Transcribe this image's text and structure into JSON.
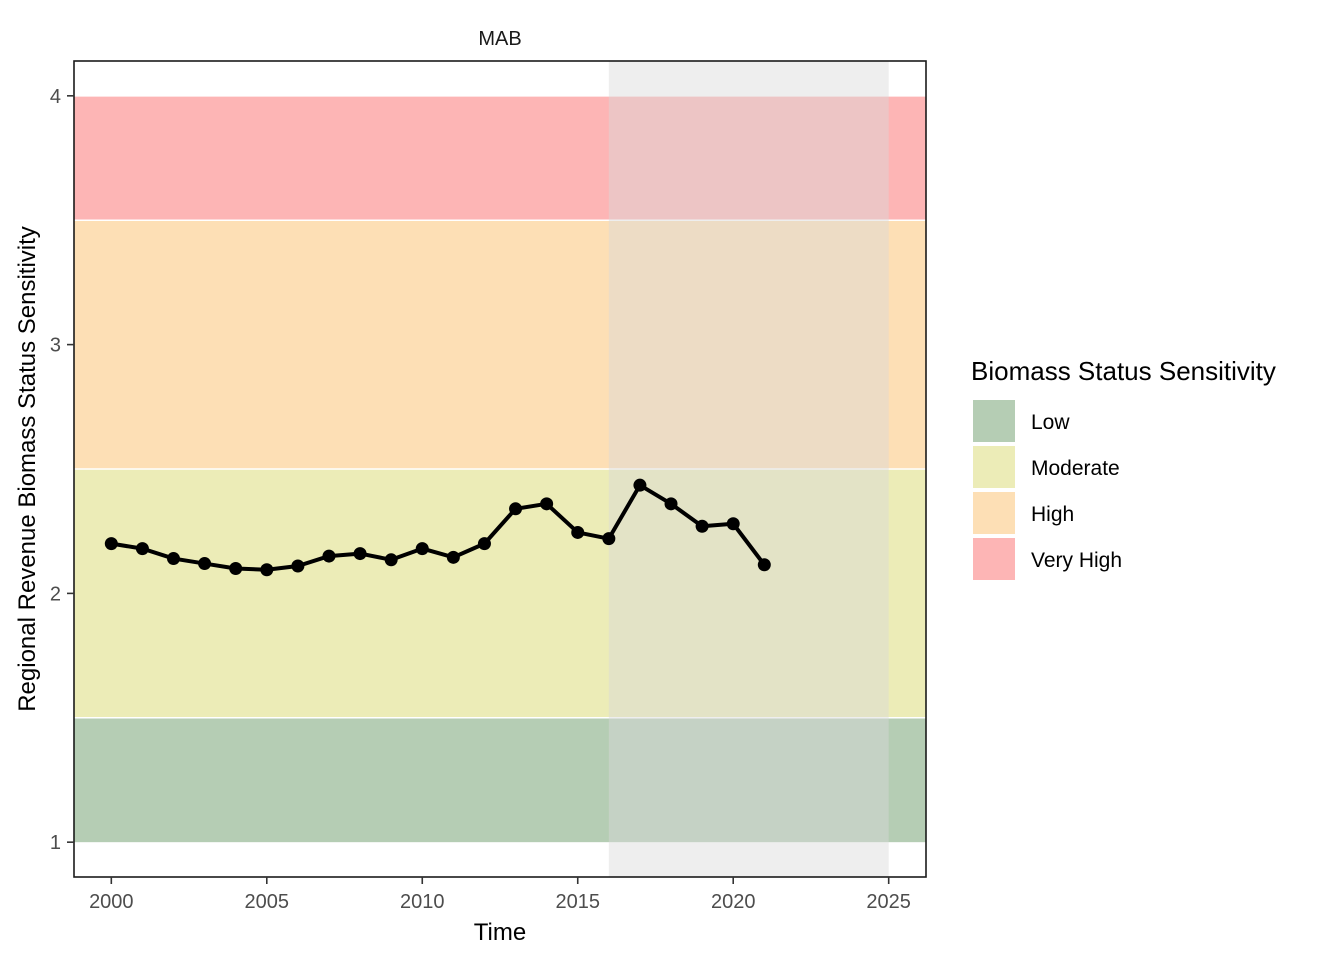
{
  "chart_data": {
    "type": "line",
    "facet_label": "MAB",
    "xlabel": "Time",
    "ylabel": "Regional Revenue Biomass Status Sensitivity",
    "xlim": [
      1998.8,
      2026.2
    ],
    "ylim": [
      0.86,
      4.14
    ],
    "x_ticks": [
      2000,
      2005,
      2010,
      2015,
      2020,
      2025
    ],
    "y_ticks": [
      1,
      2,
      3,
      4
    ],
    "grid": false,
    "series": [
      {
        "x": [
          2000,
          2001,
          2002,
          2003,
          2004,
          2005,
          2006,
          2007,
          2008,
          2009,
          2010,
          2011,
          2012,
          2013,
          2014,
          2015,
          2016,
          2017,
          2018,
          2019,
          2020,
          2021
        ],
        "y": [
          2.2,
          2.18,
          2.14,
          2.12,
          2.1,
          2.095,
          2.11,
          2.15,
          2.16,
          2.135,
          2.18,
          2.145,
          2.2,
          2.34,
          2.36,
          2.245,
          2.22,
          2.435,
          2.36,
          2.27,
          2.28,
          2.115
        ],
        "color": "#000000"
      }
    ],
    "bands": [
      {
        "category": "Low",
        "ymin": 1.0,
        "ymax": 1.5,
        "color": "#b5cdb4"
      },
      {
        "category": "Moderate",
        "ymin": 1.5,
        "ymax": 2.5,
        "color": "#ececb7"
      },
      {
        "category": "High",
        "ymin": 2.5,
        "ymax": 3.5,
        "color": "#fddfb5"
      },
      {
        "category": "Very High",
        "ymin": 3.5,
        "ymax": 4.0,
        "color": "#fdb5b5"
      }
    ],
    "highlight": {
      "xmin": 2016,
      "xmax": 2025,
      "color": "#d9d9d9"
    },
    "legend": {
      "title": "Biomass Status Sensitivity",
      "position": "right",
      "items": [
        "Low",
        "Moderate",
        "High",
        "Very High"
      ]
    }
  }
}
